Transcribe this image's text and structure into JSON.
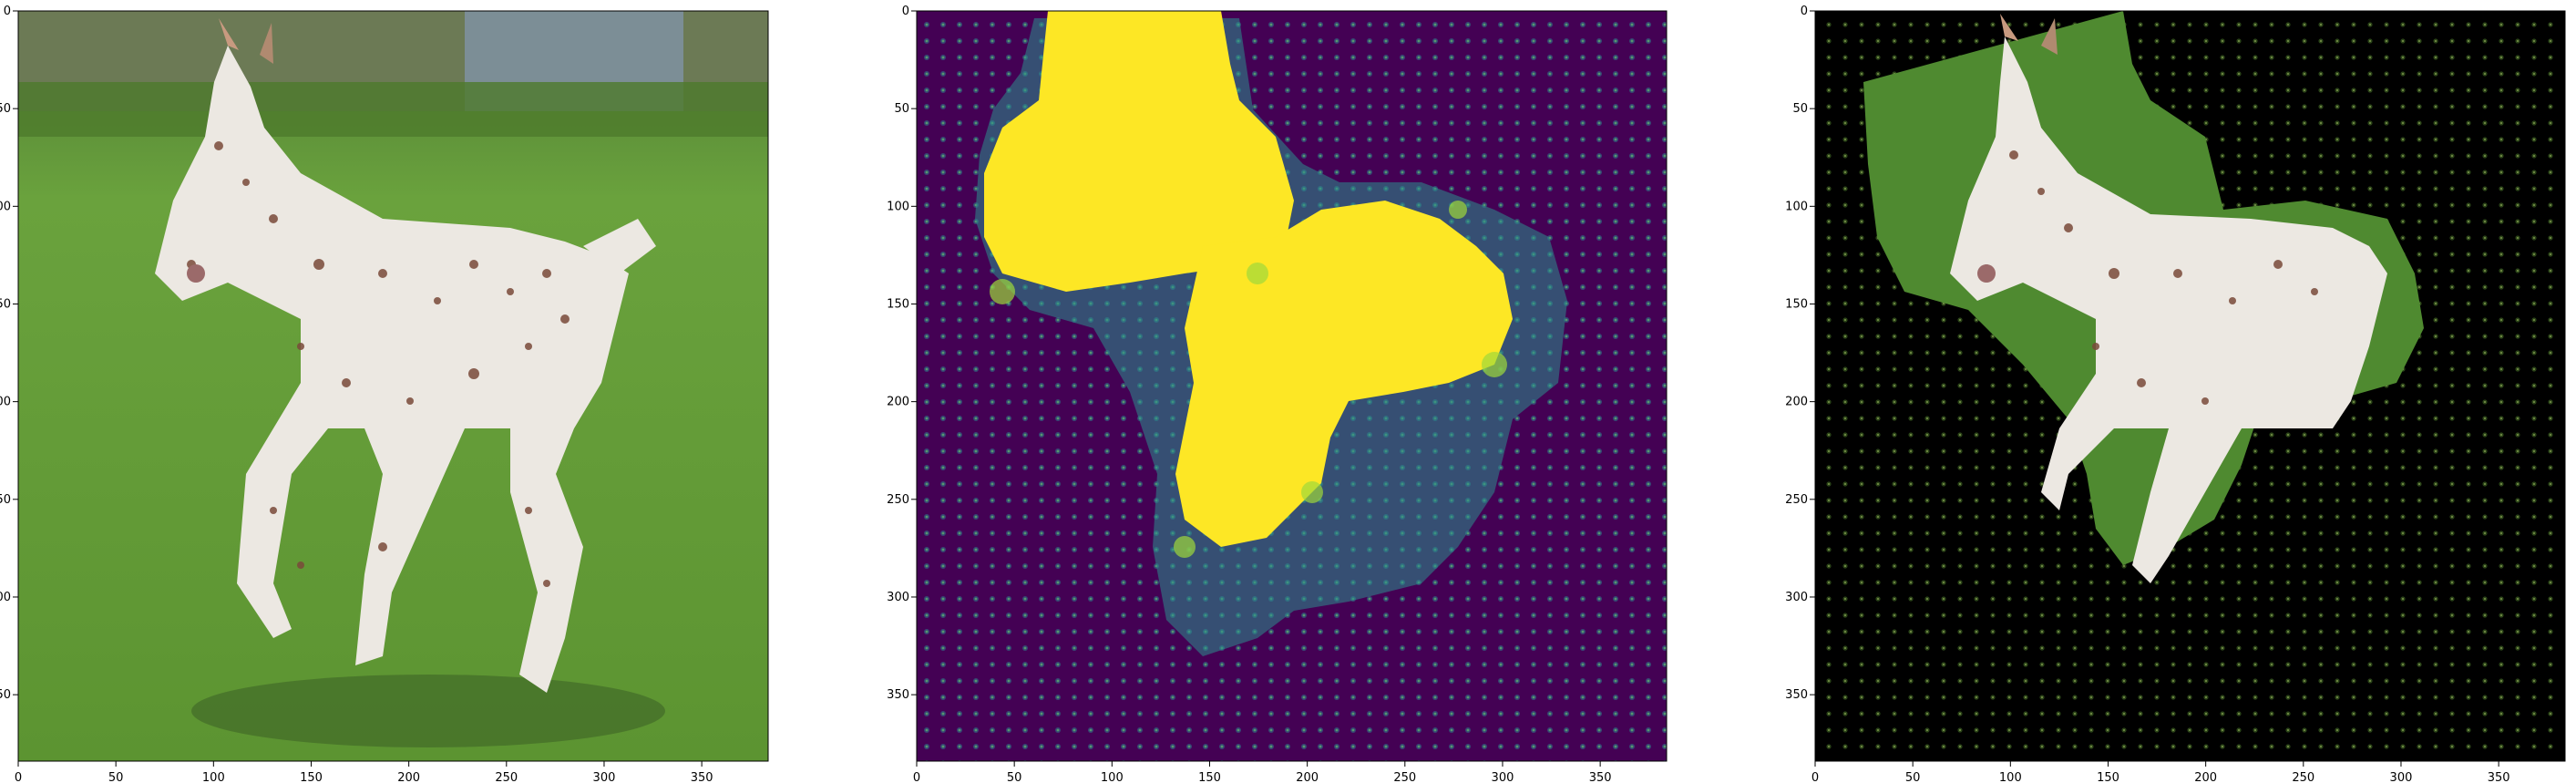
{
  "figure": {
    "panels": [
      {
        "name": "original-image",
        "content": "photo of spotted foal running on grass"
      },
      {
        "name": "saliency-heatmap",
        "content": "yellow saliency blobs on dark purple background"
      },
      {
        "name": "masked-image",
        "content": "photo masked by saliency, black background"
      }
    ]
  },
  "colors": {
    "heatmap_low": "#440154",
    "heatmap_mid": "#21918c",
    "heatmap_high": "#fde725",
    "grass": "#5f9a3a",
    "foal": "#ece8e2"
  },
  "chart_data": [
    {
      "type": "heatmap",
      "title": "",
      "xlabel": "",
      "ylabel": "",
      "xlim": [
        0,
        384
      ],
      "ylim": [
        384,
        0
      ],
      "x_ticks": [
        0,
        50,
        100,
        150,
        200,
        250,
        300,
        350
      ],
      "y_ticks": [
        0,
        50,
        100,
        150,
        200,
        250,
        300,
        350
      ],
      "x_tick_labels": [
        "0",
        "50",
        "100",
        "150",
        "200",
        "250",
        "300",
        "350"
      ],
      "y_tick_labels": [
        "0",
        "50",
        "100",
        "150",
        "200",
        "250",
        "300",
        "350"
      ]
    },
    {
      "type": "heatmap",
      "title": "",
      "xlabel": "",
      "ylabel": "",
      "xlim": [
        0,
        384
      ],
      "ylim": [
        384,
        0
      ],
      "x_ticks": [
        0,
        50,
        100,
        150,
        200,
        250,
        300,
        350
      ],
      "y_ticks": [
        0,
        50,
        100,
        150,
        200,
        250,
        300,
        350
      ],
      "x_tick_labels": [
        "0",
        "50",
        "100",
        "150",
        "200",
        "250",
        "300",
        "350"
      ],
      "y_tick_labels": [
        "0",
        "50",
        "100",
        "150",
        "200",
        "250",
        "300",
        "350"
      ]
    },
    {
      "type": "heatmap",
      "title": "",
      "xlabel": "",
      "ylabel": "",
      "xlim": [
        0,
        384
      ],
      "ylim": [
        384,
        0
      ],
      "x_ticks": [
        0,
        50,
        100,
        150,
        200,
        250,
        300,
        350
      ],
      "y_ticks": [
        0,
        50,
        100,
        150,
        200,
        250,
        300,
        350
      ],
      "x_tick_labels": [
        "0",
        "50",
        "100",
        "150",
        "200",
        "250",
        "300",
        "350"
      ],
      "y_tick_labels": [
        "0",
        "50",
        "100",
        "150",
        "200",
        "250",
        "300",
        "350"
      ]
    }
  ]
}
